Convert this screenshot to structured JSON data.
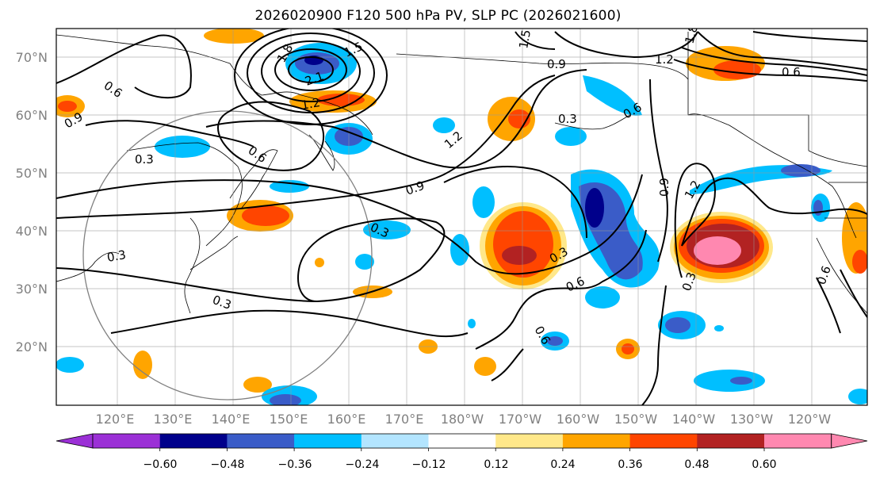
{
  "title": "2026020900 F120 500 hPa PV, SLP PC (2026021600)",
  "lat_labels": [
    "70°N",
    "60°N",
    "50°N",
    "40°N",
    "30°N",
    "20°N"
  ],
  "lon_labels": [
    "120°E",
    "130°E",
    "140°E",
    "150°E",
    "160°E",
    "170°E",
    "180°W",
    "170°W",
    "160°W",
    "150°W",
    "140°W",
    "130°W",
    "120°W"
  ],
  "contour_labels": [
    "1.5",
    "1.8",
    "2.1",
    "1.2",
    "0.9",
    "0.6",
    "0.3",
    "0.3",
    "0.6",
    "0.9",
    "1.2",
    "1.5",
    "1.2",
    "0.6",
    "0.3",
    "0.6",
    "0.6",
    "0.3",
    "0.3",
    "0.3",
    "0.9",
    "1.2",
    "0.6",
    "0.9",
    "0.3",
    "0.6",
    "1.8"
  ],
  "colorbar": {
    "labels": [
      "−0.60",
      "−0.48",
      "−0.36",
      "−0.24",
      "−0.12",
      "0.12",
      "0.24",
      "0.36",
      "0.48",
      "0.60"
    ],
    "colors": [
      "#9b30d6",
      "#00008b",
      "#3a5cc8",
      "#00bfff",
      "#b3e5ff",
      "#ffffff",
      "#ffe88a",
      "#ffa500",
      "#ff4500",
      "#b22222",
      "#ff88b0"
    ]
  }
}
